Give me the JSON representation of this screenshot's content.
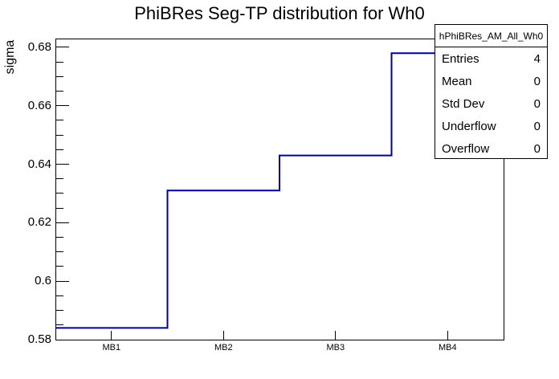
{
  "title": "PhiBRes Seg-TP distribution for Wh0",
  "colors": {
    "hist_line": "#000099",
    "axis": "#000000",
    "background": "#ffffff",
    "text": "#000000"
  },
  "y_axis": {
    "label": "sigma",
    "min": 0.58,
    "max": 0.683,
    "major_ticks": [
      {
        "value": 0.58,
        "label": "0.58"
      },
      {
        "value": 0.6,
        "label": "0.6"
      },
      {
        "value": 0.62,
        "label": "0.62"
      },
      {
        "value": 0.64,
        "label": "0.64"
      },
      {
        "value": 0.66,
        "label": "0.66"
      },
      {
        "value": 0.68,
        "label": "0.68"
      }
    ],
    "minor_tick_step": 0.005
  },
  "x_axis": {
    "labels": [
      "MB1",
      "MB2",
      "MB3",
      "MB4"
    ]
  },
  "stats_box": {
    "title": "hPhiBRes_AM_All_Wh0",
    "rows": [
      {
        "label": "Entries",
        "value": "4"
      },
      {
        "label": "Mean",
        "value": "0"
      },
      {
        "label": "Std Dev",
        "value": "0"
      },
      {
        "label": "Underflow",
        "value": "0"
      },
      {
        "label": "Overflow",
        "value": "0"
      }
    ]
  },
  "chart_data": {
    "type": "step",
    "title": "PhiBRes Seg-TP distribution for Wh0",
    "categories": [
      "MB1",
      "MB2",
      "MB3",
      "MB4"
    ],
    "values": [
      0.584,
      0.631,
      0.643,
      0.678
    ],
    "xlabel": "",
    "ylabel": "sigma",
    "ylim": [
      0.58,
      0.683
    ],
    "y_major_step": 0.02,
    "y_minor_step": 0.005,
    "grid": false,
    "legend_position": "none",
    "line_color": "#000099",
    "stats": {
      "name": "hPhiBRes_AM_All_Wh0",
      "entries": 4,
      "mean": 0,
      "std_dev": 0,
      "underflow": 0,
      "overflow": 0
    }
  }
}
